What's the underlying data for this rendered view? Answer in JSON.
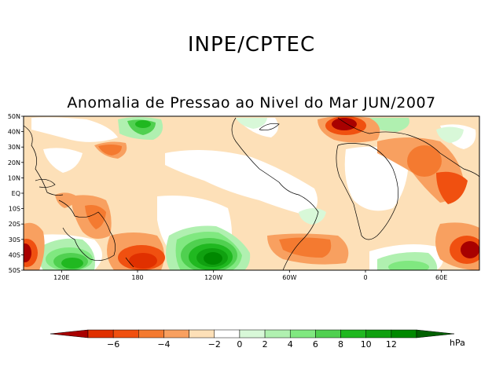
{
  "header": {
    "organization": "INPE/CPTEC",
    "title": "Anomalia de Pressao ao Nivel do Mar JUN/2007"
  },
  "map": {
    "lat_labels": [
      "50N",
      "40N",
      "30N",
      "20N",
      "10N",
      "EQ",
      "10S",
      "20S",
      "30S",
      "40S",
      "50S"
    ],
    "lon_labels": [
      "120E",
      "180",
      "120W",
      "60W",
      "0",
      "60E"
    ],
    "lat_range": [
      -50,
      50
    ],
    "lon_range": [
      90,
      450
    ]
  },
  "colorbar": {
    "unit": "hPa",
    "tick_labels": [
      "−6",
      "−4",
      "−2",
      "0",
      "2",
      "4",
      "6",
      "8",
      "10",
      "12"
    ],
    "bins": [
      {
        "range": "< -6",
        "color": "#a80000"
      },
      {
        "range": "-6 to -5",
        "color": "#e03000"
      },
      {
        "range": "-5 to -4",
        "color": "#f05010"
      },
      {
        "range": "-4 to -3",
        "color": "#f47a30"
      },
      {
        "range": "-3 to -2",
        "color": "#f8a060"
      },
      {
        "range": "-2 to 0",
        "color": "#fde0b8"
      },
      {
        "range": "0 to 2",
        "color": "#ffffff"
      },
      {
        "range": "2 to 3",
        "color": "#d8f8d8"
      },
      {
        "range": "3 to 4",
        "color": "#b0f0b0"
      },
      {
        "range": "4 to 5",
        "color": "#80e880"
      },
      {
        "range": "5 to 6",
        "color": "#50d050"
      },
      {
        "range": "6 to 8",
        "color": "#20b820"
      },
      {
        "range": "8 to 10",
        "color": "#10a010"
      },
      {
        "range": "10 to 12",
        "color": "#008800"
      },
      {
        "range": "> 12",
        "color": "#006000"
      }
    ]
  }
}
